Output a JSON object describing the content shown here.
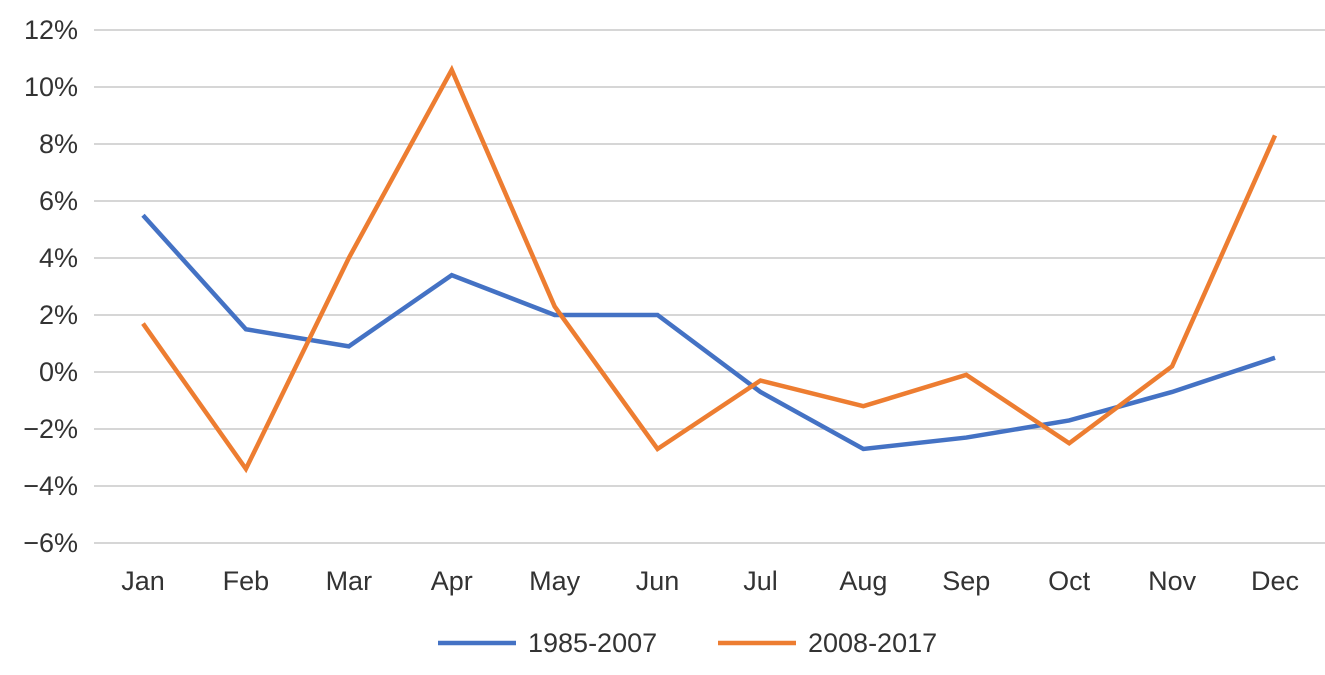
{
  "chart_data": {
    "type": "line",
    "title": "",
    "xlabel": "",
    "ylabel": "",
    "categories": [
      "Jan",
      "Feb",
      "Mar",
      "Apr",
      "May",
      "Jun",
      "Jul",
      "Aug",
      "Sep",
      "Oct",
      "Nov",
      "Dec"
    ],
    "y_ticks": [
      "12%",
      "10%",
      "8%",
      "6%",
      "4%",
      "2%",
      "0%",
      "−2%",
      "−4%",
      "−6%"
    ],
    "y_tick_values": [
      12,
      10,
      8,
      6,
      4,
      2,
      0,
      -2,
      -4,
      -6
    ],
    "ylim": [
      -6,
      12
    ],
    "y_unit": "%",
    "grid": true,
    "legend_position": "bottom",
    "series": [
      {
        "name": "1985-2007",
        "color": "#4472C4",
        "values": [
          5.5,
          1.5,
          0.9,
          3.4,
          2.0,
          2.0,
          -0.7,
          -2.7,
          -2.3,
          -1.7,
          -0.7,
          0.5
        ]
      },
      {
        "name": "2008-2017",
        "color": "#ED7D31",
        "values": [
          1.7,
          -3.4,
          4.0,
          10.6,
          2.3,
          -2.7,
          -0.3,
          -1.2,
          -0.1,
          -2.5,
          0.2,
          8.3
        ]
      }
    ]
  }
}
